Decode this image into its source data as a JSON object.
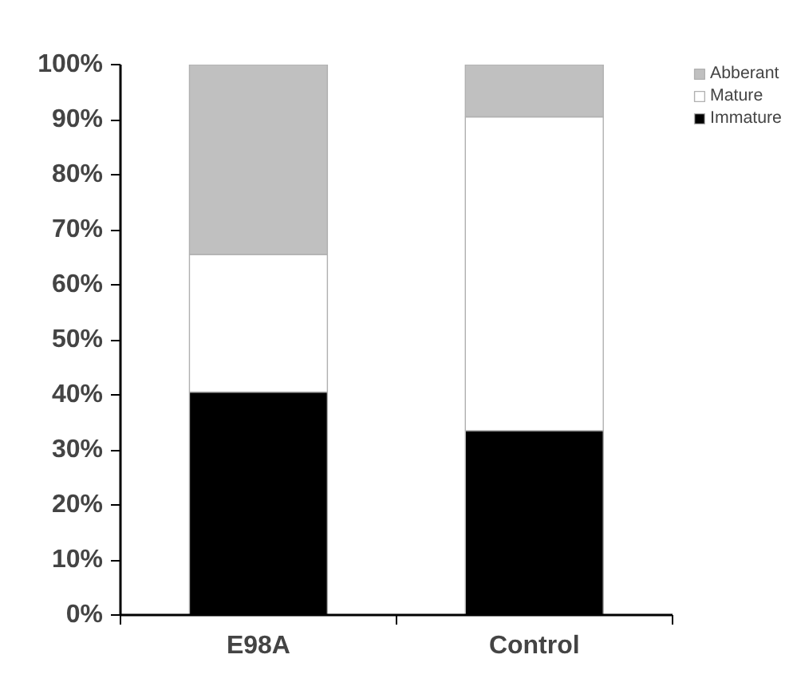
{
  "chart_data": {
    "type": "bar",
    "stacked": true,
    "categories": [
      "E98A",
      "Control"
    ],
    "series": [
      {
        "name": "Immature",
        "color": "#000000",
        "values": [
          40.5,
          33.5
        ]
      },
      {
        "name": "Mature",
        "color": "#ffffff",
        "values": [
          25,
          57
        ]
      },
      {
        "name": "Abberant",
        "color": "#c0c0c0",
        "values": [
          34.5,
          9.5
        ]
      }
    ],
    "ylim": [
      0,
      100
    ],
    "yticks": [
      {
        "value": 0,
        "label": "0%"
      },
      {
        "value": 10,
        "label": "10%"
      },
      {
        "value": 20,
        "label": "20%"
      },
      {
        "value": 30,
        "label": "30%"
      },
      {
        "value": 40,
        "label": "40%"
      },
      {
        "value": 50,
        "label": "50%"
      },
      {
        "value": 60,
        "label": "60%"
      },
      {
        "value": 70,
        "label": "70%"
      },
      {
        "value": 80,
        "label": "80%"
      },
      {
        "value": 90,
        "label": "90%"
      },
      {
        "value": 100,
        "label": "100%"
      }
    ],
    "grid": false,
    "legend": "top right"
  }
}
